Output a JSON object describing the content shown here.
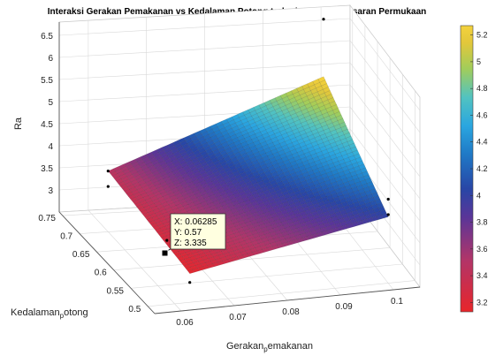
{
  "chart_data": {
    "type": "surface",
    "title": "Interaksi Gerakan Pemakanan vs Kedalaman Potong terhadap Nilai Kekasaran Permukaan",
    "xlabel": {
      "base": "Gerakan",
      "sub": "p",
      "rest": "emakanan"
    },
    "ylabel": {
      "base": "Kedalaman",
      "sub": "p",
      "rest": "otong"
    },
    "zlabel": "Ra",
    "xlim": [
      0.055,
      0.105
    ],
    "ylim": [
      0.48,
      0.76
    ],
    "zlim": [
      2.5,
      6.8
    ],
    "x_ticks": [
      "0.06",
      "0.07",
      "0.08",
      "0.09",
      "0.1"
    ],
    "y_ticks": [
      "0.5",
      "0.55",
      "0.6",
      "0.65",
      "0.7",
      "0.75"
    ],
    "z_ticks": [
      "3",
      "3.5",
      "4",
      "4.5",
      "5",
      "5.5",
      "6",
      "6.5"
    ],
    "colorbar_ticks": [
      "3.2",
      "3.4",
      "3.6",
      "3.8",
      "4",
      "4.2",
      "4.4",
      "4.6",
      "4.8",
      "5",
      "5.2"
    ],
    "colorbar_range": [
      3.13,
      5.27
    ],
    "grid": true,
    "colormap": "jet-reversed",
    "surface_corners": [
      {
        "x": 0.06285,
        "y": 0.75,
        "z": 3.45
      },
      {
        "x": 0.1,
        "y": 0.75,
        "z": 5.3
      },
      {
        "x": 0.06285,
        "y": 0.5,
        "z": 3.15
      },
      {
        "x": 0.1,
        "y": 0.5,
        "z": 4.0
      }
    ],
    "scatter_points": [
      {
        "x": 0.06285,
        "y": 0.75,
        "z": 3.45
      },
      {
        "x": 0.06285,
        "y": 0.75,
        "z": 3.1
      },
      {
        "x": 0.1,
        "y": 0.75,
        "z": 6.6
      },
      {
        "x": 0.06285,
        "y": 0.57,
        "z": 3.335
      },
      {
        "x": 0.06285,
        "y": 0.5,
        "z": 2.95
      },
      {
        "x": 0.1,
        "y": 0.5,
        "z": 4.05
      },
      {
        "x": 0.1,
        "y": 0.5,
        "z": 4.4
      }
    ],
    "datatip": {
      "x_label": "X: 0.06285",
      "y_label": "Y: 0.57",
      "z_label": "Z: 3.335",
      "point": {
        "x": 0.06285,
        "y": 0.57,
        "z": 3.335
      }
    }
  }
}
